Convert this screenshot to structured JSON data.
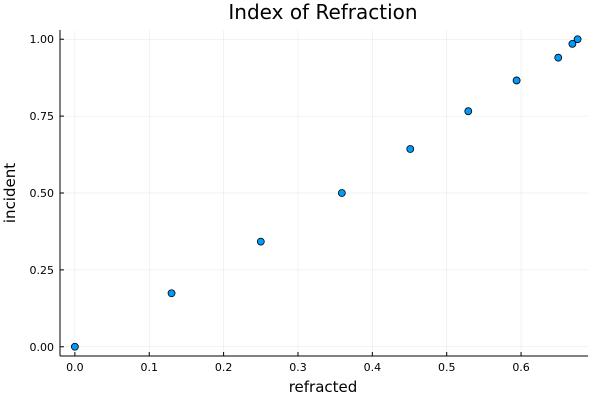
{
  "chart_data": {
    "type": "scatter",
    "title": "Index of Refraction",
    "xlabel": "refracted",
    "ylabel": "incident",
    "xlim": [
      -0.02,
      0.69
    ],
    "ylim": [
      -0.03,
      1.03
    ],
    "xticks": [
      0.0,
      0.1,
      0.2,
      0.3,
      0.4,
      0.5,
      0.6
    ],
    "xtick_labels": [
      "0.0",
      "0.1",
      "0.2",
      "0.3",
      "0.4",
      "0.5",
      "0.6"
    ],
    "yticks": [
      0.0,
      0.25,
      0.5,
      0.75,
      1.0
    ],
    "ytick_labels": [
      "0.00",
      "0.25",
      "0.50",
      "0.75",
      "1.00"
    ],
    "grid": true,
    "legend": false,
    "marker_color": "#009AFA",
    "series": [
      {
        "x": [
          0.0,
          0.13,
          0.25,
          0.359,
          0.451,
          0.529,
          0.594,
          0.65,
          0.669,
          0.676
        ],
        "y": [
          0.0,
          0.174,
          0.342,
          0.5,
          0.643,
          0.766,
          0.866,
          0.94,
          0.985,
          1.0
        ]
      }
    ]
  }
}
